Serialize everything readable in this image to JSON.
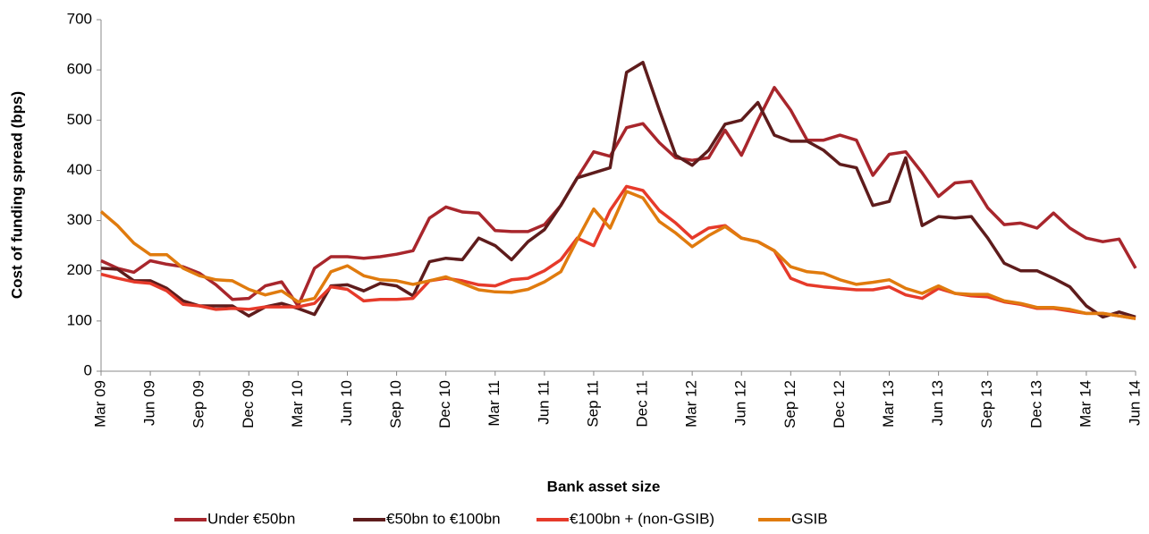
{
  "chart_data": {
    "type": "line",
    "y_label": "Cost of funding spread (bps)",
    "x_label": "Bank asset size",
    "categories": [
      "Mar 09",
      null,
      null,
      "Jun 09",
      null,
      null,
      "Sep 09",
      null,
      null,
      "Dec 09",
      null,
      null,
      "Mar 10",
      null,
      null,
      "Jun 10",
      null,
      null,
      "Sep 10",
      null,
      null,
      "Dec 10",
      null,
      null,
      "Mar 11",
      null,
      null,
      "Jun 11",
      null,
      null,
      "Sep 11",
      null,
      null,
      "Dec 11",
      null,
      null,
      "Mar 12",
      null,
      null,
      "Jun 12",
      null,
      null,
      "Sep 12",
      null,
      null,
      "Dec 12",
      null,
      null,
      "Mar 13",
      null,
      null,
      "Jun 13",
      null,
      null,
      "Sep 13",
      null,
      null,
      "Dec 13",
      null,
      null,
      "Mar 14",
      null,
      null,
      "Jun 14"
    ],
    "ylim": [
      0,
      700
    ],
    "yticks": [
      0,
      100,
      200,
      300,
      400,
      500,
      600,
      700
    ],
    "series": [
      {
        "name": "Under €50bn",
        "color": "#a8262c",
        "values": [
          220,
          205,
          197,
          220,
          213,
          208,
          195,
          172,
          143,
          145,
          170,
          178,
          130,
          205,
          228,
          228,
          225,
          228,
          233,
          240,
          305,
          327,
          317,
          315,
          280,
          278,
          278,
          292,
          330,
          385,
          437,
          428,
          485,
          493,
          455,
          425,
          420,
          425,
          480,
          430,
          500,
          565,
          520,
          460,
          460,
          470,
          460,
          390,
          432,
          437,
          395,
          348,
          375,
          378,
          325,
          292,
          295,
          285,
          315,
          285,
          265,
          258,
          263,
          205
        ]
      },
      {
        "name": "€50bn to €100bn",
        "color": "#5e1c1c",
        "values": [
          205,
          203,
          180,
          180,
          165,
          140,
          130,
          130,
          130,
          110,
          128,
          135,
          125,
          113,
          170,
          172,
          160,
          175,
          170,
          150,
          218,
          225,
          222,
          265,
          250,
          222,
          258,
          282,
          330,
          385,
          395,
          405,
          595,
          615,
          520,
          430,
          410,
          440,
          492,
          500,
          535,
          470,
          458,
          458,
          440,
          412,
          405,
          330,
          338,
          425,
          290,
          308,
          305,
          308,
          265,
          215,
          200,
          200,
          185,
          168,
          130,
          108,
          118,
          108
        ]
      },
      {
        "name": "€100bn + (non-GSIB)",
        "color": "#e63a2a",
        "values": [
          193,
          185,
          178,
          175,
          160,
          133,
          130,
          123,
          125,
          123,
          128,
          128,
          128,
          135,
          168,
          163,
          140,
          143,
          143,
          145,
          180,
          185,
          180,
          172,
          170,
          182,
          185,
          200,
          222,
          265,
          250,
          320,
          368,
          360,
          320,
          295,
          265,
          285,
          290,
          265,
          258,
          240,
          185,
          172,
          168,
          165,
          162,
          162,
          168,
          152,
          145,
          165,
          155,
          150,
          148,
          138,
          133,
          125,
          125,
          120,
          115,
          115,
          110,
          105
        ]
      },
      {
        "name": "GSIB",
        "color": "#e07b0e",
        "values": [
          318,
          290,
          255,
          232,
          232,
          205,
          190,
          182,
          180,
          163,
          152,
          160,
          138,
          145,
          198,
          210,
          190,
          182,
          180,
          173,
          180,
          188,
          175,
          162,
          158,
          157,
          163,
          178,
          198,
          262,
          323,
          285,
          358,
          345,
          298,
          275,
          248,
          270,
          288,
          265,
          258,
          240,
          208,
          198,
          195,
          182,
          173,
          177,
          182,
          165,
          155,
          170,
          155,
          153,
          153,
          140,
          135,
          127,
          127,
          123,
          115,
          115,
          110,
          105
        ]
      }
    ]
  }
}
